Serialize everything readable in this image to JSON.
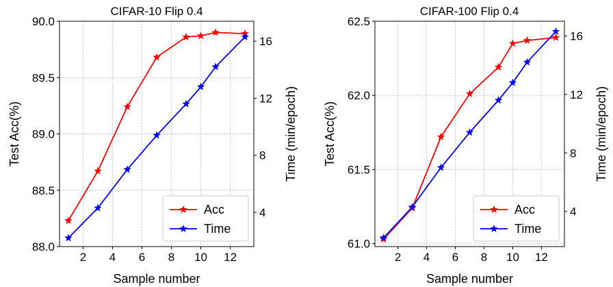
{
  "chart_data": [
    {
      "type": "line",
      "title": "CIFAR-10 Flip 0.4",
      "xlabel": "Sample number",
      "ylabel": "Test Acc(%)",
      "y2label": "Time (min/epoch)",
      "xlim": [
        0.4,
        13.6
      ],
      "ylim": [
        88.0,
        90.0
      ],
      "y2lim": [
        1.6,
        17.4
      ],
      "xticks": [
        2,
        4,
        6,
        8,
        10,
        12
      ],
      "yticks": [
        88.0,
        88.5,
        89.0,
        89.5,
        90.0
      ],
      "ytick_labels": [
        "88.0",
        "88.5",
        "89.0",
        "89.5",
        "90.0"
      ],
      "y2ticks": [
        4,
        8,
        12,
        16
      ],
      "grid": true,
      "legend_position": "lower-right",
      "x": [
        1,
        3,
        5,
        7,
        9,
        10,
        11,
        13
      ],
      "series": [
        {
          "name": "Acc",
          "axis": "left",
          "color": "#ff0000",
          "marker": "star",
          "values": [
            88.23,
            88.67,
            89.24,
            89.68,
            89.86,
            89.87,
            89.9,
            89.89
          ]
        },
        {
          "name": "Time",
          "axis": "right",
          "color": "#0000ff",
          "marker": "star",
          "values": [
            2.2,
            4.3,
            7.0,
            9.4,
            11.6,
            12.8,
            14.2,
            16.3
          ]
        }
      ]
    },
    {
      "type": "line",
      "title": "CIFAR-100 Flip 0.4",
      "xlabel": "Sample number",
      "ylabel": "Test Acc(%)",
      "y2label": "Time (min/epoch)",
      "xlim": [
        0.4,
        13.6
      ],
      "ylim": [
        60.98,
        62.5
      ],
      "y2lim": [
        1.6,
        17.0
      ],
      "xticks": [
        2,
        4,
        6,
        8,
        10,
        12
      ],
      "yticks": [
        61.0,
        61.5,
        62.0,
        62.5
      ],
      "ytick_labels": [
        "61.0",
        "61.5",
        "62.0",
        "62.5"
      ],
      "y2ticks": [
        4,
        8,
        12,
        16
      ],
      "grid": true,
      "legend_position": "lower-right",
      "x": [
        1,
        3,
        5,
        7,
        9,
        10,
        11,
        13
      ],
      "series": [
        {
          "name": "Acc",
          "axis": "left",
          "color": "#ff0000",
          "marker": "star",
          "values": [
            61.03,
            61.24,
            61.72,
            62.01,
            62.19,
            62.35,
            62.37,
            62.39
          ]
        },
        {
          "name": "Time",
          "axis": "right",
          "color": "#0000ff",
          "marker": "star",
          "values": [
            2.2,
            4.3,
            7.0,
            9.4,
            11.6,
            12.8,
            14.2,
            16.3
          ]
        }
      ]
    }
  ]
}
